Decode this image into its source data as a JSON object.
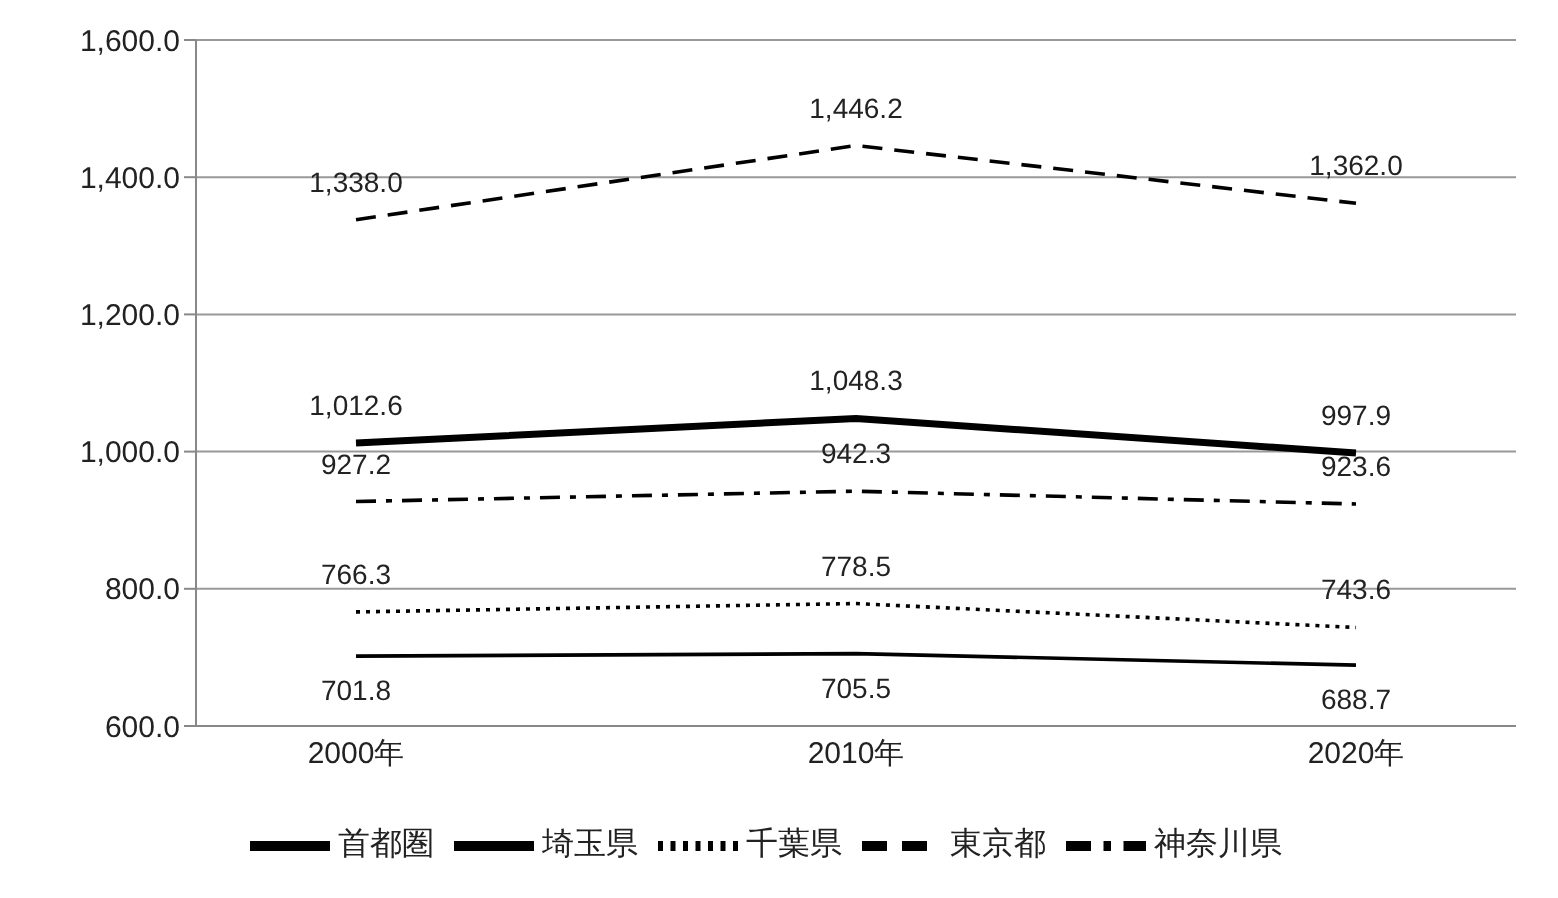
{
  "chart_data": {
    "type": "line",
    "categories": [
      "2000年",
      "2010年",
      "2020年"
    ],
    "series": [
      {
        "name": "首都圏",
        "color": "#000000",
        "line_style": "solid",
        "values": [
          1012.6,
          1048.3,
          997.9
        ],
        "value_labels": [
          "1,012.6",
          "1,048.3",
          "997.9"
        ]
      },
      {
        "name": "埼玉県",
        "color": "#000000",
        "line_style": "solid",
        "values": [
          701.8,
          705.5,
          688.7
        ],
        "value_labels": [
          "701.8",
          "705.5",
          "688.7"
        ]
      },
      {
        "name": "千葉県",
        "color": "#000000",
        "line_style": "dotted",
        "values": [
          766.3,
          778.5,
          743.6
        ],
        "value_labels": [
          "766.3",
          "778.5",
          "743.6"
        ]
      },
      {
        "name": "東京都",
        "color": "#000000",
        "line_style": "dashed",
        "values": [
          1338.0,
          1446.2,
          1362.0
        ],
        "value_labels": [
          "1,338.0",
          "1,446.2",
          "1,362.0"
        ]
      },
      {
        "name": "神奈川県",
        "color": "#000000",
        "line_style": "dashdot",
        "values": [
          927.2,
          942.3,
          923.6
        ],
        "value_labels": [
          "927.2",
          "942.3",
          "923.6"
        ]
      }
    ],
    "ylim": [
      600,
      1600
    ],
    "yticks": [
      {
        "value": 600,
        "label": "600.0"
      },
      {
        "value": 800,
        "label": "800.0"
      },
      {
        "value": 1000,
        "label": "1,000.0"
      },
      {
        "value": 1200,
        "label": "1,200.0"
      },
      {
        "value": 1400,
        "label": "1,400.0"
      },
      {
        "value": 1600,
        "label": "1,600.0"
      }
    ],
    "grid": "y",
    "legend": "bottom",
    "marker": "none"
  }
}
